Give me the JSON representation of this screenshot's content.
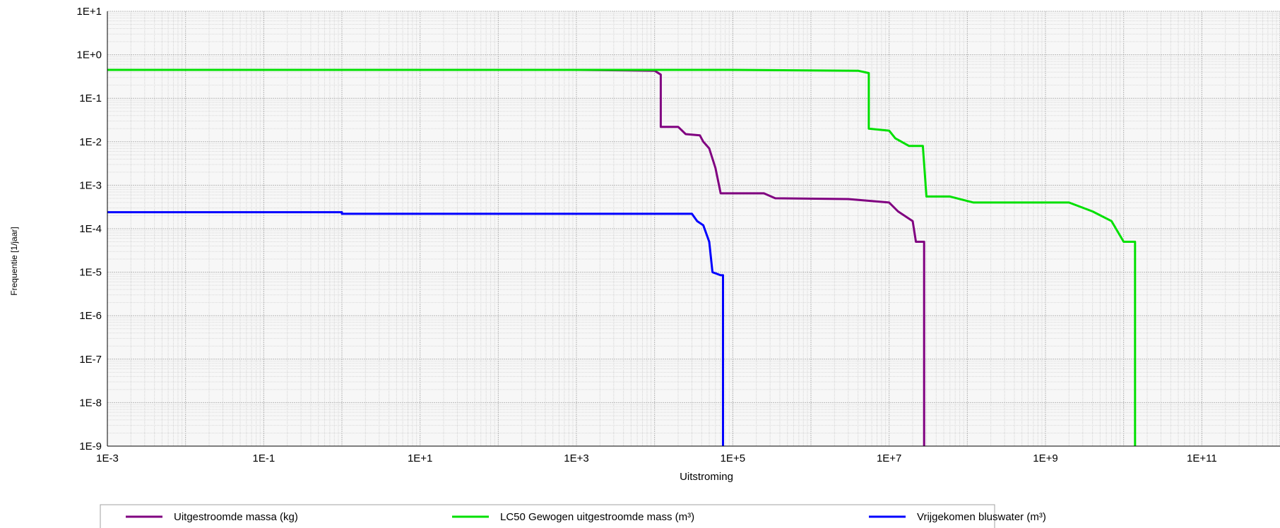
{
  "chart_data": {
    "type": "line",
    "xlabel": "Uitstroming",
    "ylabel": "Frequentie [1/jaar]",
    "xscale": "log",
    "yscale": "log",
    "xlim": [
      0.001,
      1000000000000.0
    ],
    "ylim": [
      1e-09,
      10
    ],
    "grid": true,
    "legend_position": "bottom",
    "x_tick_labels": [
      "1E-3",
      "1E-1",
      "1E+1",
      "1E+3",
      "1E+5",
      "1E+7",
      "1E+9",
      "1E+11"
    ],
    "x_tick_values": [
      0.001,
      0.1,
      10,
      1000,
      100000,
      10000000,
      1000000000,
      100000000000
    ],
    "y_tick_labels": [
      "1E+1",
      "1E+0",
      "1E-1",
      "1E-2",
      "1E-3",
      "1E-4",
      "1E-5",
      "1E-6",
      "1E-7",
      "1E-8",
      "1E-9"
    ],
    "y_tick_values": [
      10,
      1,
      0.1,
      0.01,
      0.001,
      0.0001,
      1e-05,
      1e-06,
      1e-07,
      1e-08,
      1e-09
    ],
    "series": [
      {
        "name": "Uitgestroomde massa (kg)",
        "color": "#800080",
        "points": [
          [
            0.001,
            0.45
          ],
          [
            1000,
            0.45
          ],
          [
            10000,
            0.43
          ],
          [
            12000,
            0.35
          ],
          [
            12000,
            0.022
          ],
          [
            20000,
            0.022
          ],
          [
            25000,
            0.015
          ],
          [
            38000,
            0.014
          ],
          [
            42000,
            0.01
          ],
          [
            50000,
            0.007
          ],
          [
            60000,
            0.0025
          ],
          [
            70000,
            0.00065
          ],
          [
            250000,
            0.00065
          ],
          [
            350000,
            0.0005
          ],
          [
            3000000,
            0.00048
          ],
          [
            10000000,
            0.0004
          ],
          [
            13000000,
            0.00025
          ],
          [
            20000000,
            0.00015
          ],
          [
            22000000,
            5e-05
          ],
          [
            28000000,
            5e-05
          ],
          [
            28000000,
            1e-09
          ]
        ]
      },
      {
        "name": "LC50 Gewogen uitgestroomde mass (m³)",
        "color": "#00e000",
        "points": [
          [
            0.001,
            0.45
          ],
          [
            100000,
            0.45
          ],
          [
            4000000,
            0.43
          ],
          [
            5500000,
            0.38
          ],
          [
            5500000,
            0.02
          ],
          [
            10000000,
            0.018
          ],
          [
            12000000,
            0.012
          ],
          [
            18000000,
            0.008
          ],
          [
            27000000,
            0.008
          ],
          [
            30000000,
            0.00055
          ],
          [
            60000000,
            0.00055
          ],
          [
            120000000,
            0.0004
          ],
          [
            2000000000,
            0.0004
          ],
          [
            4000000000,
            0.00025
          ],
          [
            7000000000,
            0.00015
          ],
          [
            10000000000,
            5e-05
          ],
          [
            14000000000,
            5e-05
          ],
          [
            14000000000,
            1e-09
          ]
        ]
      },
      {
        "name": "Vrijgekomen bluswater (m³)",
        "color": "#0000ff",
        "points": [
          [
            0.001,
            0.00024
          ],
          [
            1,
            0.00024
          ],
          [
            1,
            0.00022
          ],
          [
            30000,
            0.00022
          ],
          [
            35000,
            0.00015
          ],
          [
            42000,
            0.00012
          ],
          [
            50000,
            5e-05
          ],
          [
            55000,
            1e-05
          ],
          [
            70000,
            8.5e-06
          ],
          [
            75000,
            8.5e-06
          ],
          [
            75000,
            1e-09
          ]
        ]
      }
    ]
  }
}
